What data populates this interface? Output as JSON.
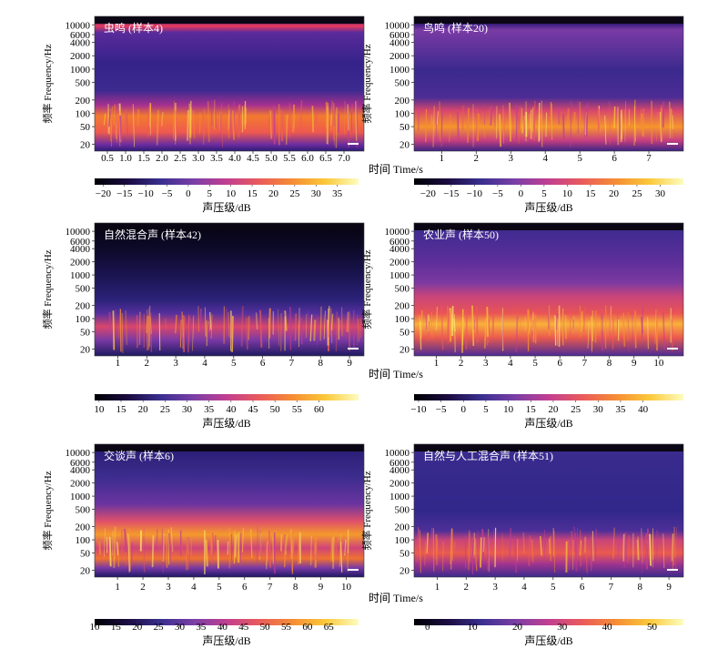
{
  "ylabel": "频率 Frequency/Hz",
  "xlabel": "时间 Time/s",
  "colorbar_label": "声压级/dB",
  "y_ticks": [
    "10000",
    "6000",
    "4000",
    "2000",
    "1000",
    "500",
    "200",
    "100",
    "50",
    "20"
  ],
  "y_tick_values": [
    10000,
    6000,
    4000,
    2000,
    1000,
    500,
    200,
    100,
    50,
    20
  ],
  "colors": {
    "colormap": [
      "#000004",
      "#1b0c41",
      "#3a2f8f",
      "#7a3fa6",
      "#c13f91",
      "#ea5b5b",
      "#f58d34",
      "#fbc93a",
      "#fcfdbf"
    ]
  },
  "chart_data": [
    {
      "type": "heatmap",
      "title": "虫鸣 (样本4)",
      "x_ticks": [
        0.5,
        1.0,
        1.5,
        2.0,
        2.5,
        3.0,
        3.5,
        4.0,
        4.5,
        5.0,
        5.5,
        6.0,
        6.5,
        7.0
      ],
      "x_tick_labels": [
        "0.5",
        "1.0",
        "1.5",
        "2.0",
        "2.5",
        "3.0",
        "3.5",
        "4.0",
        "4.5",
        "5.0",
        "5.5",
        "6.0",
        "6.5",
        "7.0"
      ],
      "xlim": [
        0.15,
        7.55
      ],
      "colorbar_ticks": [
        "−20",
        "−15",
        "−10",
        "−5",
        "0",
        "5",
        "10",
        "15",
        "20",
        "25",
        "30",
        "35"
      ],
      "colorbar_range": [
        -22,
        40
      ]
    },
    {
      "type": "heatmap",
      "title": "鸟鸣 (样本20)",
      "x_ticks": [
        1,
        2,
        3,
        4,
        5,
        6,
        7
      ],
      "x_tick_labels": [
        "1",
        "2",
        "3",
        "4",
        "5",
        "6",
        "7"
      ],
      "xlim": [
        0.2,
        8.0
      ],
      "colorbar_ticks": [
        "−20",
        "−15",
        "−10",
        "−5",
        "0",
        "5",
        "10",
        "15",
        "20",
        "25",
        "30"
      ],
      "colorbar_range": [
        -23,
        35
      ]
    },
    {
      "type": "heatmap",
      "title": "自然混合声 (样本42)",
      "x_ticks": [
        1,
        2,
        3,
        4,
        5,
        6,
        7,
        8,
        9
      ],
      "x_tick_labels": [
        "1",
        "2",
        "3",
        "4",
        "5",
        "6",
        "7",
        "8",
        "9"
      ],
      "xlim": [
        0.2,
        9.5
      ],
      "colorbar_ticks": [
        "10",
        "15",
        "20",
        "25",
        "30",
        "35",
        "40",
        "45",
        "50",
        "55",
        "60"
      ],
      "colorbar_range": [
        9,
        69
      ]
    },
    {
      "type": "heatmap",
      "title": "农业声 (样本50)",
      "x_ticks": [
        1,
        2,
        3,
        4,
        5,
        6,
        7,
        8,
        9,
        10
      ],
      "x_tick_labels": [
        "1",
        "2",
        "3",
        "4",
        "5",
        "6",
        "7",
        "8",
        "9",
        "10"
      ],
      "xlim": [
        0.1,
        11.0
      ],
      "colorbar_ticks": [
        "−10",
        "−5",
        "0",
        "5",
        "10",
        "15",
        "20",
        "25",
        "30",
        "35",
        "40"
      ],
      "colorbar_range": [
        -11,
        49
      ]
    },
    {
      "type": "heatmap",
      "title": "交谈声 (样本6)",
      "x_ticks": [
        1,
        2,
        3,
        4,
        5,
        6,
        7,
        8,
        9,
        10
      ],
      "x_tick_labels": [
        "1",
        "2",
        "3",
        "4",
        "5",
        "6",
        "7",
        "8",
        "9",
        "10"
      ],
      "xlim": [
        0.1,
        10.7
      ],
      "colorbar_ticks": [
        "10",
        "15",
        "20",
        "25",
        "30",
        "35",
        "40",
        "45",
        "50",
        "55",
        "60",
        "65"
      ],
      "colorbar_range": [
        10,
        72
      ]
    },
    {
      "type": "heatmap",
      "title": "自然与人工混合声 (样本51)",
      "x_ticks": [
        1,
        2,
        3,
        4,
        5,
        6,
        7,
        8,
        9
      ],
      "x_tick_labels": [
        "1",
        "2",
        "3",
        "4",
        "5",
        "6",
        "7",
        "8",
        "9"
      ],
      "xlim": [
        0.2,
        9.5
      ],
      "colorbar_ticks": [
        "0",
        "10",
        "20",
        "30",
        "40",
        "50"
      ],
      "colorbar_range": [
        -3,
        57
      ]
    }
  ]
}
